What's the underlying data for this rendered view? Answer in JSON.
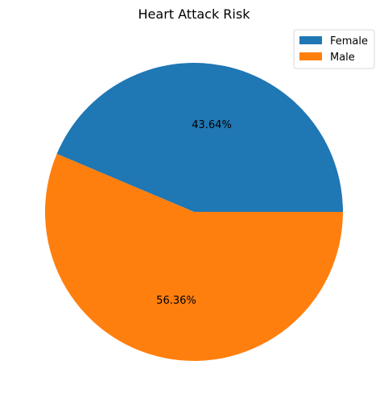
{
  "chart_data": {
    "type": "pie",
    "title": "Heart Attack Risk",
    "categories": [
      "Female",
      "Male"
    ],
    "values": [
      43.64,
      56.36
    ],
    "labels": [
      "43.64%",
      "56.36%"
    ],
    "colors": [
      "#1f77b4",
      "#ff7f0e"
    ],
    "legend_position": "top-right",
    "start_angle_deg": 0,
    "direction": "counterclockwise"
  }
}
